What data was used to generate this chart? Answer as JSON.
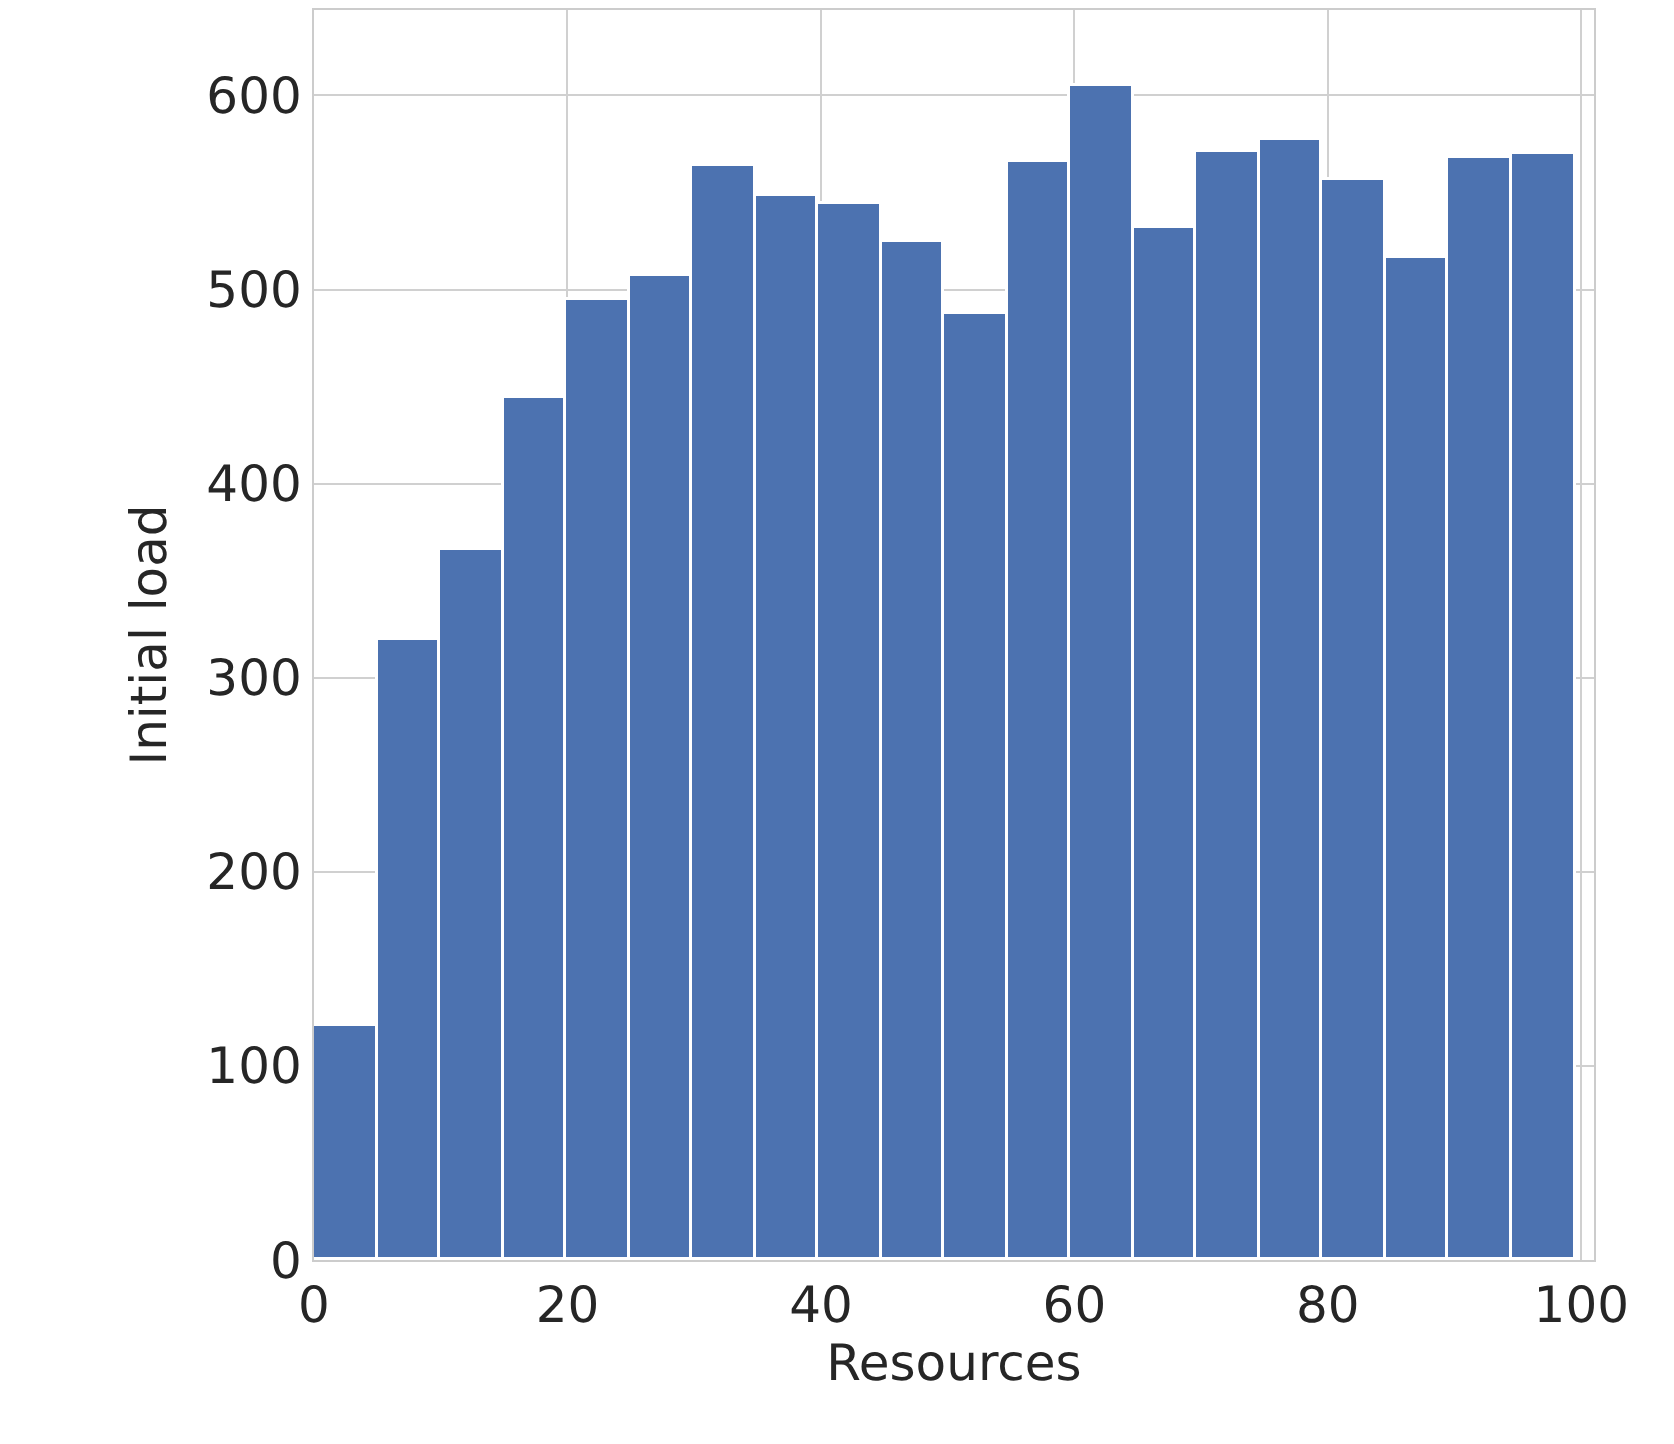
{
  "chart_data": {
    "type": "histogram",
    "xlabel": "Resources",
    "ylabel": "Initial load",
    "bins": [
      0,
      4.98,
      9.95,
      14.93,
      19.9,
      24.88,
      29.85,
      34.83,
      39.8,
      44.78,
      49.75,
      54.73,
      59.7,
      64.68,
      69.65,
      74.63,
      79.6,
      84.58,
      89.55,
      94.53,
      99.5
    ],
    "values": [
      121,
      319,
      366,
      444,
      495,
      507,
      564,
      548,
      544,
      524,
      487,
      566,
      605,
      532,
      571,
      577,
      556,
      516,
      568,
      570
    ],
    "color": "#4c72b0",
    "xlim": [
      0,
      101
    ],
    "xticks": [
      0,
      20,
      40,
      60,
      80,
      100
    ],
    "ylim": [
      0,
      644
    ],
    "yticks": [
      0,
      100,
      200,
      300,
      400,
      500,
      600
    ],
    "grid": true
  }
}
